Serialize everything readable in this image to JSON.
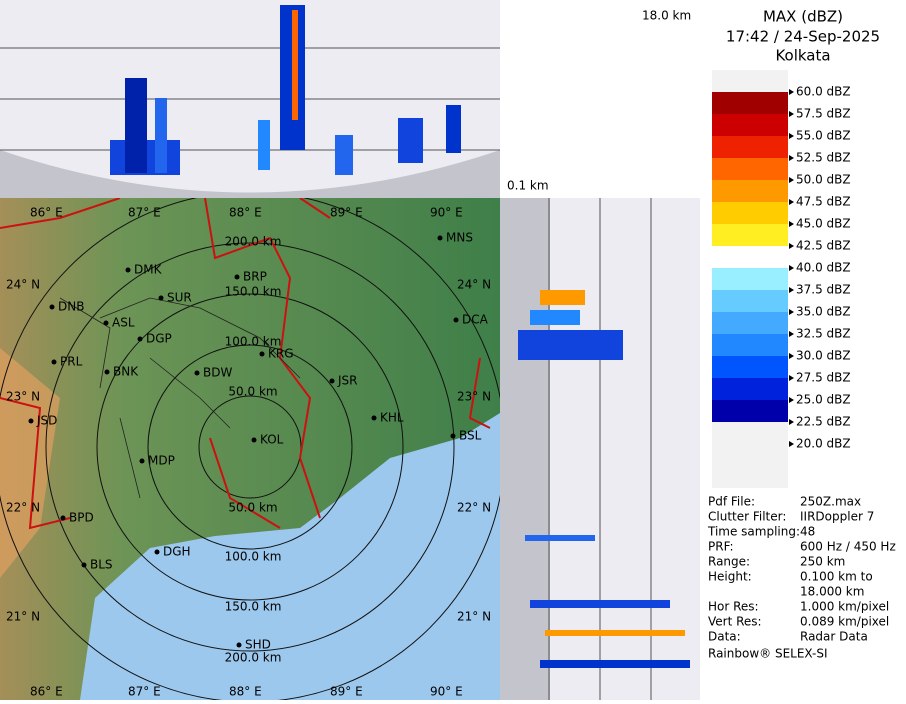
{
  "header": {
    "title": "MAX (dBZ)",
    "time": "17:42 / 24-Sep-2025",
    "location": "Kolkata"
  },
  "profile": {
    "top_height": "18.0 km",
    "bottom_height": "0.1 km"
  },
  "map": {
    "lon_labels_top": [
      "86° E",
      "87° E",
      "88° E",
      "89° E",
      "90° E"
    ],
    "lon_labels_bottom": [
      "86° E",
      "87° E",
      "88° E",
      "89° E",
      "90° E"
    ],
    "lat_labels_left": [
      "24° N",
      "23° N",
      "22° N",
      "21° N"
    ],
    "lat_labels_right": [
      "24° N",
      "23° N",
      "22° N",
      "21° N"
    ],
    "range_labels": [
      "200.0 km",
      "150.0 km",
      "100.0 km",
      "50.0 km",
      "50.0 km",
      "100.0 km",
      "150.0 km",
      "200.0 km"
    ],
    "cities": [
      "MNS",
      "DMK",
      "BRP",
      "SUR",
      "DNB",
      "ASL",
      "DGP",
      "DCA",
      "PRL",
      "BNK",
      "KRG",
      "BDW",
      "JSR",
      "KHL",
      "BSL",
      "JSD",
      "MDP",
      "KOL",
      "BPD",
      "DGH",
      "BLS",
      "SHD"
    ]
  },
  "legend": [
    {
      "label": "60.0 dBZ",
      "color": "#f2f2f2"
    },
    {
      "label": "57.5 dBZ",
      "color": "#a00000"
    },
    {
      "label": "55.0 dBZ",
      "color": "#cc0000"
    },
    {
      "label": "52.5 dBZ",
      "color": "#ee2200"
    },
    {
      "label": "50.0 dBZ",
      "color": "#ff6600"
    },
    {
      "label": "47.5 dBZ",
      "color": "#ff9900"
    },
    {
      "label": "45.0 dBZ",
      "color": "#ffcc00"
    },
    {
      "label": "42.5 dBZ",
      "color": "#ffee22"
    },
    {
      "label": "40.0 dBZ",
      "color": "#ffffff"
    },
    {
      "label": "37.5 dBZ",
      "color": "#99eeff"
    },
    {
      "label": "35.0 dBZ",
      "color": "#66ccff"
    },
    {
      "label": "32.5 dBZ",
      "color": "#44aaff"
    },
    {
      "label": "30.0 dBZ",
      "color": "#2288ff"
    },
    {
      "label": "27.5 dBZ",
      "color": "#0055ff"
    },
    {
      "label": "25.0 dBZ",
      "color": "#0022dd"
    },
    {
      "label": "22.5 dBZ",
      "color": "#0000aa"
    },
    {
      "label": "20.0 dBZ",
      "color": "#f2f2f2"
    }
  ],
  "info": [
    [
      "Pdf File:",
      "250Z.max"
    ],
    [
      "Clutter Filter:",
      "IIRDoppler 7"
    ],
    [
      "Time sampling:",
      "48"
    ],
    [
      "PRF:",
      "600 Hz / 450 Hz"
    ],
    [
      "Range:",
      "250 km"
    ],
    [
      "Height:",
      "0.100 km to"
    ],
    [
      "",
      "18.000 km"
    ],
    [
      "Hor Res:",
      "1.000 km/pixel"
    ],
    [
      "Vert Res:",
      "0.089 km/pixel"
    ],
    [
      "Data:",
      "Radar Data"
    ]
  ],
  "footer": "Rainbow® SELEX-SI"
}
